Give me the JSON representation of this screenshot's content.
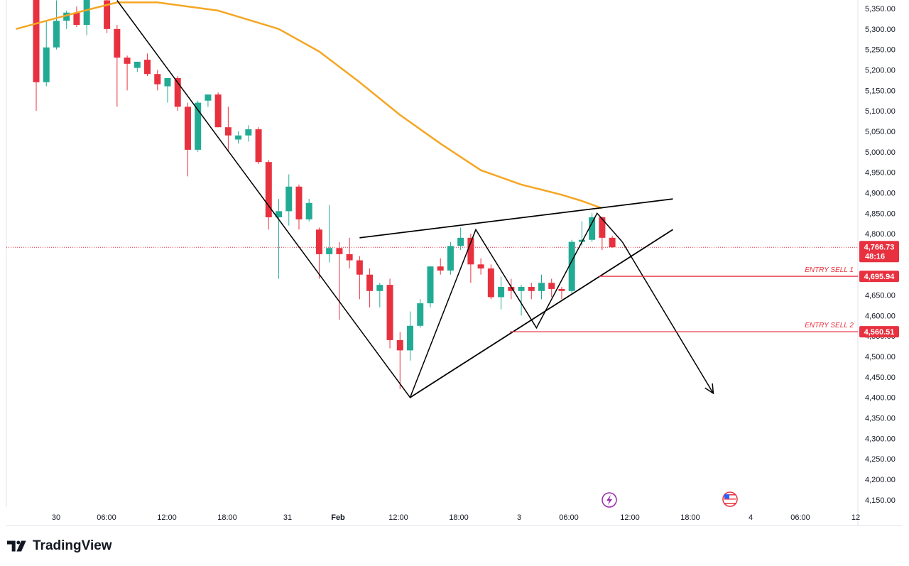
{
  "brand": {
    "name": "TradingView",
    "icon": "tradingview-logo-icon"
  },
  "colors": {
    "up": "#22ab94",
    "down": "#e8313f",
    "ma": "#f5a623",
    "line": "#000000",
    "grid_border": "#e0e3eb"
  },
  "price_axis": {
    "ticks": [
      "5,350.00",
      "5,300.00",
      "5,250.00",
      "5,200.00",
      "5,150.00",
      "5,100.00",
      "5,050.00",
      "5,000.00",
      "4,950.00",
      "4,900.00",
      "4,850.00",
      "4,800.00",
      "4,750.00",
      "4,700.00",
      "4,650.00",
      "4,600.00",
      "4,550.00",
      "4,500.00",
      "4,450.00",
      "4,400.00",
      "4,350.00",
      "4,300.00",
      "4,250.00",
      "4,200.00",
      "4,150.00"
    ],
    "current_price": "4,766.73",
    "countdown": "48:16"
  },
  "time_axis": {
    "ticks": [
      "30",
      "06:00",
      "12:00",
      "18:00",
      "31",
      "Feb",
      "12:00",
      "18:00",
      "3",
      "06:00",
      "12:00",
      "18:00",
      "4",
      "06:00",
      "12"
    ]
  },
  "entries": [
    {
      "label": "ENTRY SELL 1",
      "price_text": "4,695.94",
      "price": 4695.94
    },
    {
      "label": "ENTRY SELL 2",
      "price_text": "4,560.51",
      "price": 4560.51
    }
  ],
  "event_icons": [
    "lightning-event-icon",
    "us-flag-event-icon"
  ],
  "chart_data": {
    "type": "candlestick",
    "timeframe_note": "hourly candles",
    "y_range": [
      4130,
      5370
    ],
    "current_price": 4766.73,
    "candles": [
      {
        "o": 5420,
        "h": 5440,
        "l": 5100,
        "c": 5170
      },
      {
        "o": 5170,
        "h": 5320,
        "l": 5160,
        "c": 5255
      },
      {
        "o": 5255,
        "h": 5370,
        "l": 5250,
        "c": 5320
      },
      {
        "o": 5320,
        "h": 5345,
        "l": 5300,
        "c": 5340
      },
      {
        "o": 5340,
        "h": 5355,
        "l": 5305,
        "c": 5310
      },
      {
        "o": 5310,
        "h": 5420,
        "l": 5285,
        "c": 5410
      },
      {
        "o": 5410,
        "h": 5440,
        "l": 5380,
        "c": 5410
      },
      {
        "o": 5370,
        "h": 5380,
        "l": 5290,
        "c": 5300
      },
      {
        "o": 5300,
        "h": 5310,
        "l": 5110,
        "c": 5230
      },
      {
        "o": 5230,
        "h": 5235,
        "l": 5150,
        "c": 5215
      },
      {
        "o": 5205,
        "h": 5220,
        "l": 5195,
        "c": 5220
      },
      {
        "o": 5225,
        "h": 5240,
        "l": 5185,
        "c": 5190
      },
      {
        "o": 5190,
        "h": 5200,
        "l": 5150,
        "c": 5165
      },
      {
        "o": 5160,
        "h": 5180,
        "l": 5120,
        "c": 5180
      },
      {
        "o": 5180,
        "h": 5185,
        "l": 5100,
        "c": 5110
      },
      {
        "o": 5110,
        "h": 5120,
        "l": 4940,
        "c": 5005
      },
      {
        "o": 5005,
        "h": 5125,
        "l": 5000,
        "c": 5120
      },
      {
        "o": 5125,
        "h": 5140,
        "l": 5110,
        "c": 5140
      },
      {
        "o": 5140,
        "h": 5145,
        "l": 5060,
        "c": 5060
      },
      {
        "o": 5060,
        "h": 5110,
        "l": 5000,
        "c": 5040
      },
      {
        "o": 5030,
        "h": 5050,
        "l": 5020,
        "c": 5040
      },
      {
        "o": 5040,
        "h": 5065,
        "l": 5025,
        "c": 5055
      },
      {
        "o": 5055,
        "h": 5060,
        "l": 4970,
        "c": 4975
      },
      {
        "o": 4975,
        "h": 4980,
        "l": 4810,
        "c": 4840
      },
      {
        "o": 4840,
        "h": 4885,
        "l": 4690,
        "c": 4855
      },
      {
        "o": 4855,
        "h": 4945,
        "l": 4820,
        "c": 4915
      },
      {
        "o": 4915,
        "h": 4920,
        "l": 4810,
        "c": 4835
      },
      {
        "o": 4835,
        "h": 4885,
        "l": 4830,
        "c": 4875
      },
      {
        "o": 4810,
        "h": 4815,
        "l": 4690,
        "c": 4750
      },
      {
        "o": 4750,
        "h": 4870,
        "l": 4730,
        "c": 4765
      },
      {
        "o": 4765,
        "h": 4780,
        "l": 4590,
        "c": 4750
      },
      {
        "o": 4750,
        "h": 4790,
        "l": 4715,
        "c": 4735
      },
      {
        "o": 4735,
        "h": 4745,
        "l": 4640,
        "c": 4700
      },
      {
        "o": 4700,
        "h": 4715,
        "l": 4620,
        "c": 4660
      },
      {
        "o": 4660,
        "h": 4680,
        "l": 4620,
        "c": 4675
      },
      {
        "o": 4675,
        "h": 4690,
        "l": 4520,
        "c": 4540
      },
      {
        "o": 4540,
        "h": 4560,
        "l": 4420,
        "c": 4515
      },
      {
        "o": 4515,
        "h": 4610,
        "l": 4490,
        "c": 4575
      },
      {
        "o": 4575,
        "h": 4640,
        "l": 4570,
        "c": 4630
      },
      {
        "o": 4630,
        "h": 4720,
        "l": 4620,
        "c": 4720
      },
      {
        "o": 4720,
        "h": 4740,
        "l": 4700,
        "c": 4710
      },
      {
        "o": 4710,
        "h": 4780,
        "l": 4700,
        "c": 4770
      },
      {
        "o": 4770,
        "h": 4815,
        "l": 4760,
        "c": 4790
      },
      {
        "o": 4790,
        "h": 4800,
        "l": 4680,
        "c": 4725
      },
      {
        "o": 4725,
        "h": 4740,
        "l": 4700,
        "c": 4715
      },
      {
        "o": 4715,
        "h": 4725,
        "l": 4640,
        "c": 4645
      },
      {
        "o": 4645,
        "h": 4695,
        "l": 4615,
        "c": 4670
      },
      {
        "o": 4670,
        "h": 4690,
        "l": 4640,
        "c": 4660
      },
      {
        "o": 4660,
        "h": 4675,
        "l": 4600,
        "c": 4670
      },
      {
        "o": 4670,
        "h": 4680,
        "l": 4640,
        "c": 4660
      },
      {
        "o": 4660,
        "h": 4700,
        "l": 4640,
        "c": 4680
      },
      {
        "o": 4680,
        "h": 4690,
        "l": 4645,
        "c": 4665
      },
      {
        "o": 4665,
        "h": 4670,
        "l": 4640,
        "c": 4660
      },
      {
        "o": 4660,
        "h": 4785,
        "l": 4655,
        "c": 4780
      },
      {
        "o": 4780,
        "h": 4830,
        "l": 4770,
        "c": 4785
      },
      {
        "o": 4785,
        "h": 4850,
        "l": 4780,
        "c": 4840
      },
      {
        "o": 4840,
        "h": 4842,
        "l": 4760,
        "c": 4790
      },
      {
        "o": 4790,
        "h": 4795,
        "l": 4765,
        "c": 4767
      }
    ],
    "moving_average": [
      {
        "i": -2,
        "v": 5300
      },
      {
        "i": 4,
        "v": 5340
      },
      {
        "i": 8,
        "v": 5365
      },
      {
        "i": 12,
        "v": 5365
      },
      {
        "i": 18,
        "v": 5345
      },
      {
        "i": 24,
        "v": 5300
      },
      {
        "i": 28,
        "v": 5245
      },
      {
        "i": 32,
        "v": 5170
      },
      {
        "i": 36,
        "v": 5090
      },
      {
        "i": 40,
        "v": 5020
      },
      {
        "i": 44,
        "v": 4955
      },
      {
        "i": 48,
        "v": 4920
      },
      {
        "i": 52,
        "v": 4895
      },
      {
        "i": 54,
        "v": 4880
      },
      {
        "i": 56,
        "v": 4862
      }
    ],
    "drawings": {
      "zigzag": [
        {
          "i": 8,
          "v": 5370
        },
        {
          "i": 37,
          "v": 4400
        },
        {
          "i": 43.5,
          "v": 4810
        },
        {
          "i": 49.5,
          "v": 4570
        },
        {
          "i": 55.5,
          "v": 4850
        },
        {
          "i": 58,
          "v": 4780
        }
      ],
      "trend_upper": [
        {
          "i": 32,
          "v": 4790
        },
        {
          "i": 63,
          "v": 4885
        }
      ],
      "trend_lower": [
        {
          "i": 37,
          "v": 4400
        },
        {
          "i": 63,
          "v": 4810
        }
      ],
      "projection_arrow": [
        {
          "i": 58,
          "v": 4780
        },
        {
          "i": 67,
          "v": 4410
        }
      ]
    }
  }
}
